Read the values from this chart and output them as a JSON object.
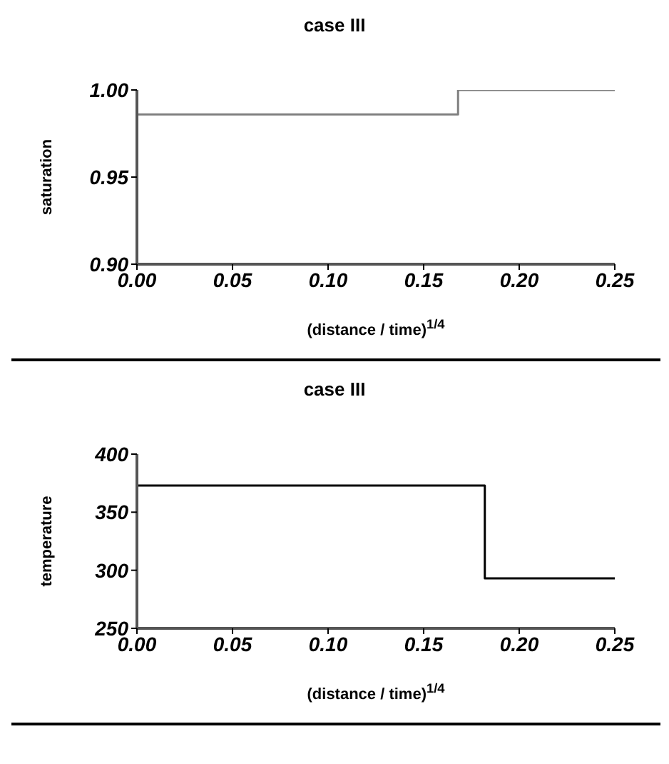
{
  "chart_data": [
    {
      "type": "step",
      "title": "case III",
      "xlabel": "(distance / time)$^{1/4}$",
      "ylabel": "saturation",
      "x": [
        0,
        0.168,
        0.25
      ],
      "series": [
        {
          "color": "#808080",
          "values": [
            0.986,
            1.0,
            1.0
          ]
        }
      ],
      "xlim": [
        0,
        0.25
      ],
      "xticks": [
        {
          "value": 0,
          "label": "0.00"
        },
        0.05,
        {
          "value": 0.1,
          "label": "0.10"
        },
        0.15,
        {
          "value": 0.2,
          "label": "0.20"
        },
        0.25
      ],
      "ylim": [
        0.9,
        1.0
      ],
      "yticks": [
        {
          "value": 0.9,
          "label": "0.90"
        },
        0.95,
        {
          "value": 1.0,
          "label": "1.00"
        }
      ],
      "grid": false,
      "legend": false
    },
    {
      "type": "step",
      "title": "case III",
      "xlabel": "(distance / time)$^{1/4}$",
      "ylabel": "temperature",
      "x": [
        0,
        0.182,
        0.25
      ],
      "series": [
        {
          "color": "#000000",
          "values": [
            373,
            293,
            293
          ]
        }
      ],
      "xlim": [
        0,
        0.25
      ],
      "xticks": [
        {
          "value": 0,
          "label": "0.00"
        },
        0.05,
        {
          "value": 0.1,
          "label": "0.10"
        },
        0.15,
        {
          "value": 0.2,
          "label": "0.20"
        },
        0.25
      ],
      "ylim": [
        250,
        400
      ],
      "yticks": [
        250,
        300,
        350,
        400
      ],
      "grid": false,
      "legend": false
    }
  ]
}
